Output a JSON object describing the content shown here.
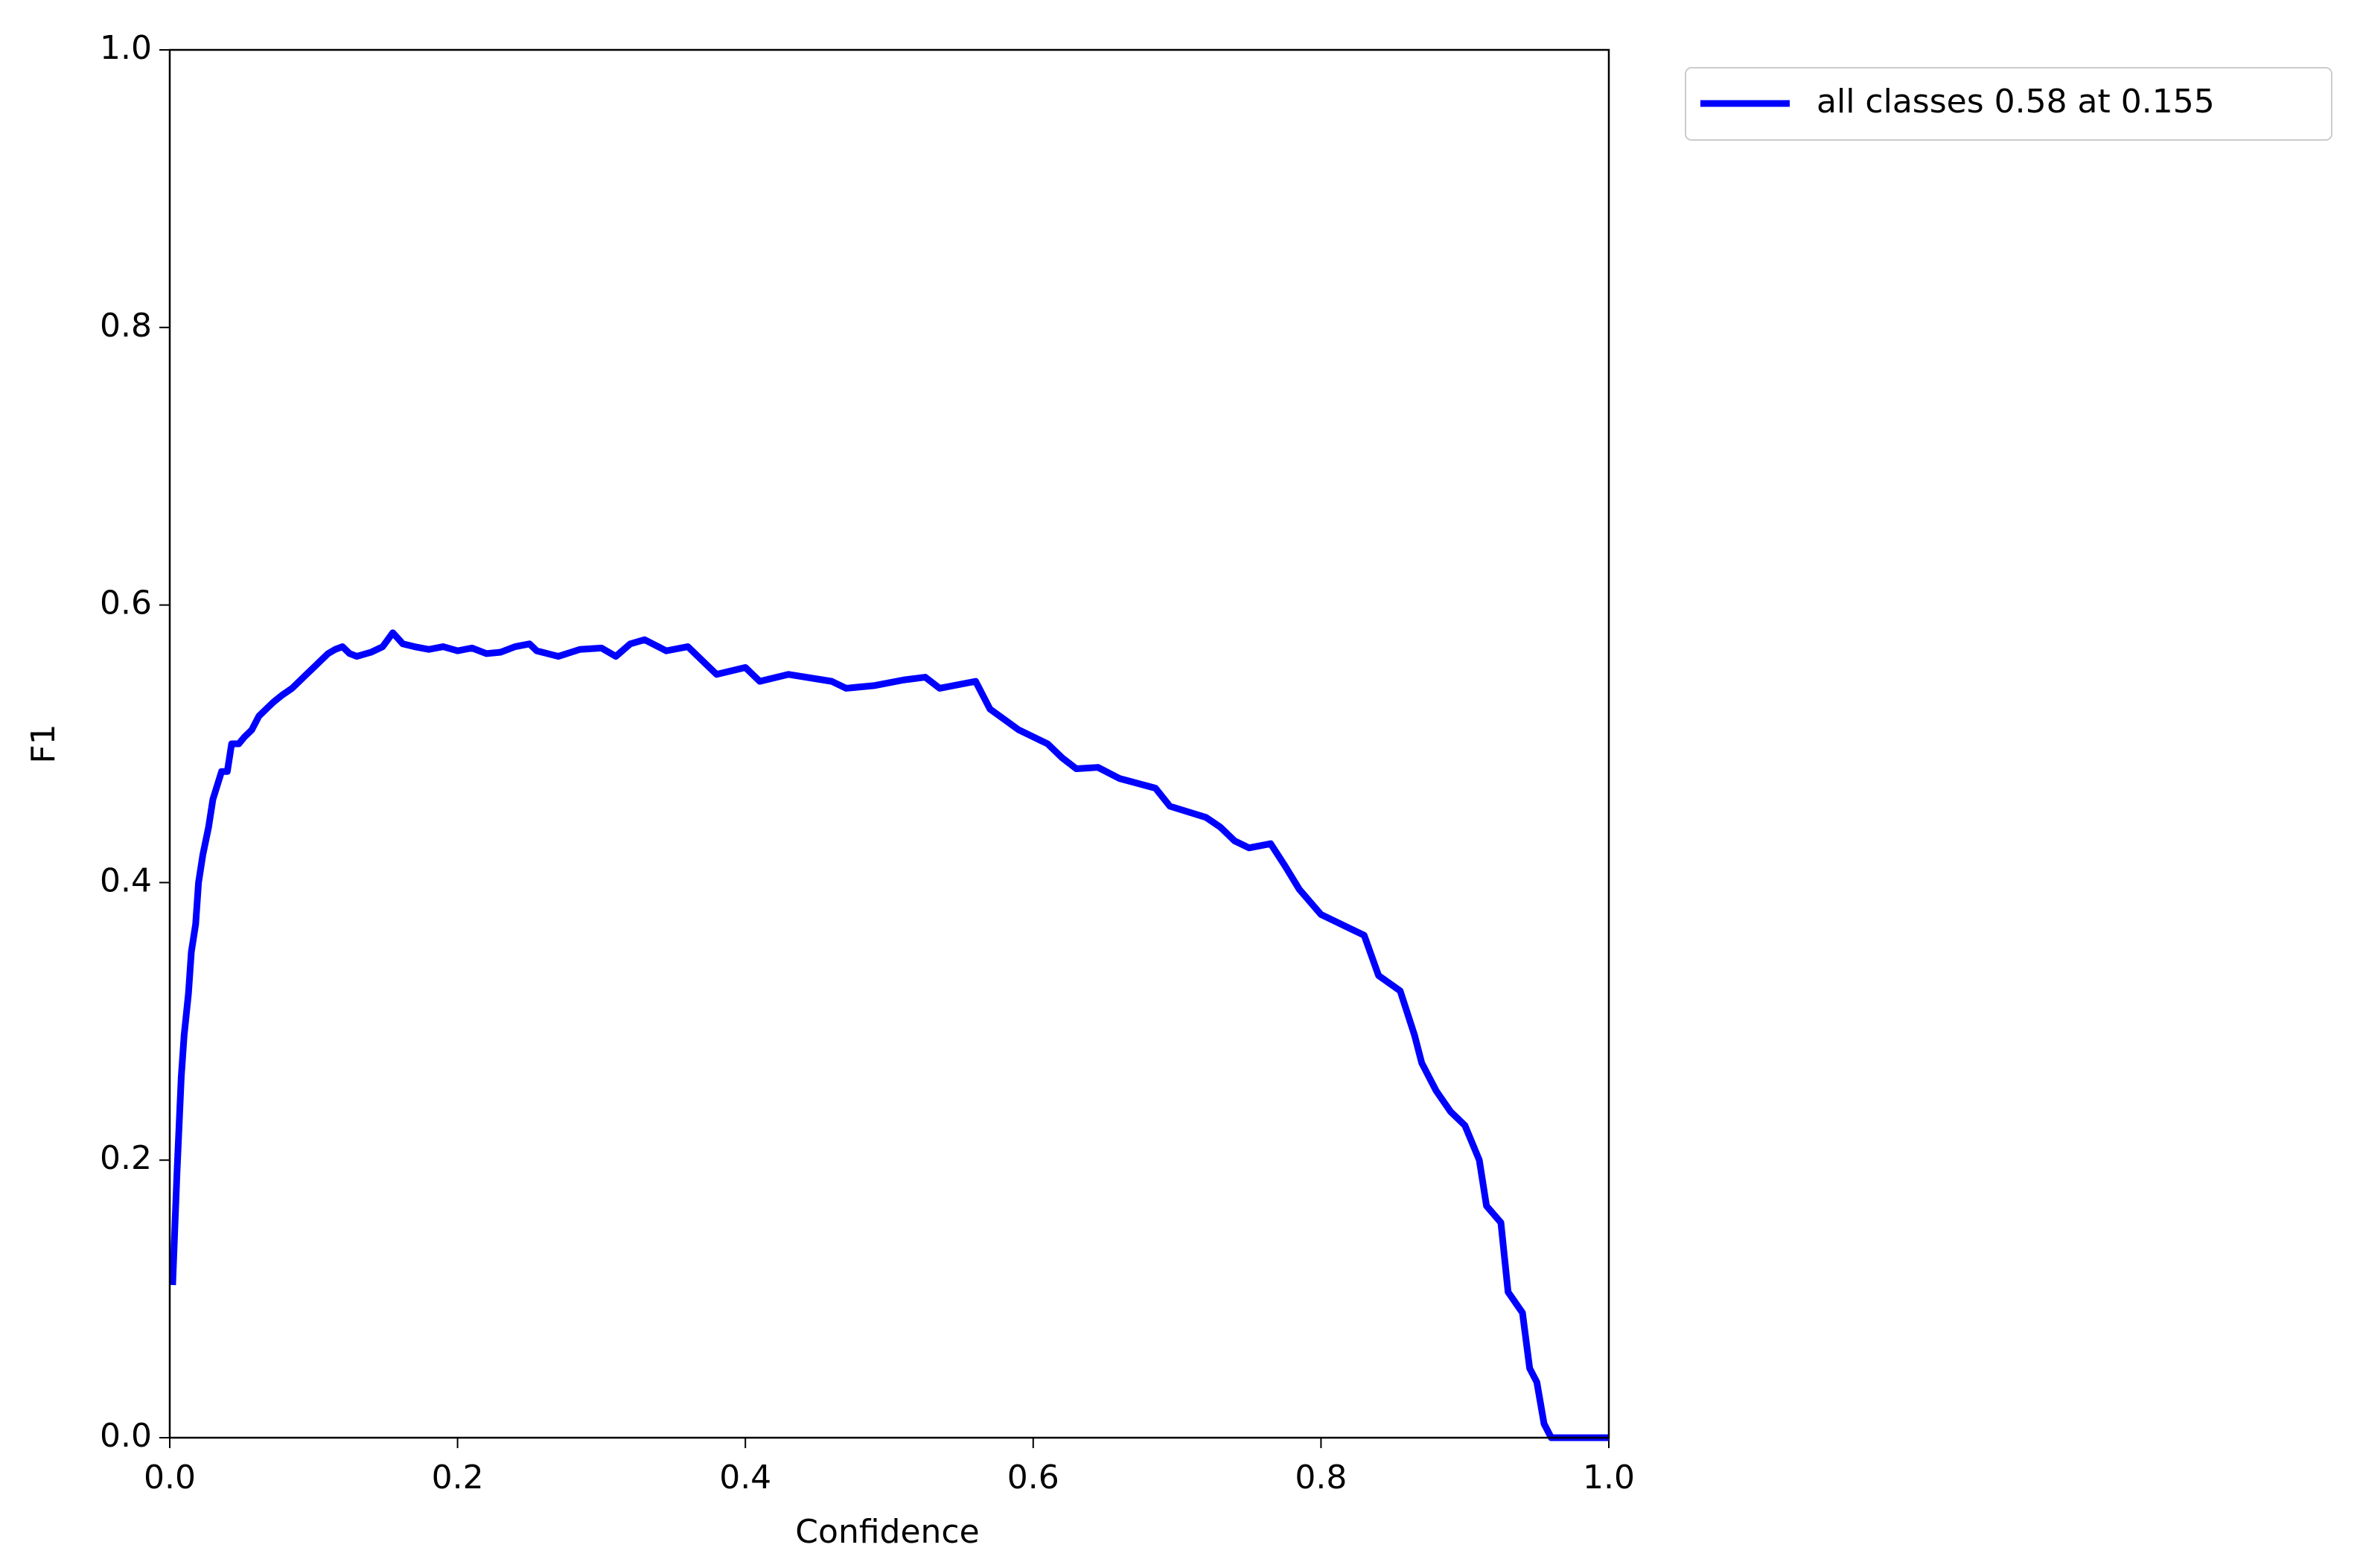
{
  "chart_data": {
    "type": "line",
    "x_label": "Confidence",
    "y_label": "F1",
    "x": [
      0.002,
      0.005,
      0.008,
      0.01,
      0.013,
      0.015,
      0.018,
      0.02,
      0.023,
      0.027,
      0.03,
      0.033,
      0.036,
      0.04,
      0.043,
      0.048,
      0.052,
      0.057,
      0.062,
      0.067,
      0.072,
      0.078,
      0.085,
      0.09,
      0.095,
      0.1,
      0.105,
      0.11,
      0.115,
      0.12,
      0.125,
      0.13,
      0.14,
      0.148,
      0.155,
      0.162,
      0.17,
      0.18,
      0.19,
      0.2,
      0.21,
      0.22,
      0.23,
      0.24,
      0.25,
      0.255,
      0.27,
      0.285,
      0.3,
      0.31,
      0.32,
      0.33,
      0.345,
      0.36,
      0.37,
      0.38,
      0.4,
      0.41,
      0.43,
      0.46,
      0.47,
      0.49,
      0.51,
      0.525,
      0.535,
      0.56,
      0.57,
      0.59,
      0.61,
      0.62,
      0.63,
      0.645,
      0.66,
      0.685,
      0.695,
      0.72,
      0.73,
      0.74,
      0.75,
      0.765,
      0.775,
      0.785,
      0.8,
      0.82,
      0.83,
      0.84,
      0.855,
      0.865,
      0.87,
      0.88,
      0.89,
      0.9,
      0.91,
      0.915,
      0.925,
      0.93,
      0.94,
      0.945,
      0.95,
      0.955,
      0.96,
      1.0
    ],
    "series": [
      {
        "name": "all classes 0.58 at 0.155",
        "color": "#0000ff",
        "values": [
          0.11,
          0.19,
          0.26,
          0.29,
          0.32,
          0.35,
          0.37,
          0.4,
          0.42,
          0.44,
          0.46,
          0.47,
          0.48,
          0.48,
          0.5,
          0.5,
          0.505,
          0.51,
          0.52,
          0.525,
          0.53,
          0.535,
          0.54,
          0.545,
          0.55,
          0.555,
          0.56,
          0.565,
          0.568,
          0.57,
          0.565,
          0.563,
          0.566,
          0.57,
          0.58,
          0.572,
          0.57,
          0.568,
          0.57,
          0.567,
          0.569,
          0.565,
          0.566,
          0.57,
          0.572,
          0.567,
          0.563,
          0.568,
          0.569,
          0.563,
          0.572,
          0.575,
          0.567,
          0.57,
          0.56,
          0.55,
          0.555,
          0.545,
          0.55,
          0.545,
          0.54,
          0.542,
          0.546,
          0.548,
          0.54,
          0.545,
          0.525,
          0.51,
          0.5,
          0.49,
          0.482,
          0.483,
          0.475,
          0.468,
          0.455,
          0.447,
          0.44,
          0.43,
          0.425,
          0.428,
          0.412,
          0.395,
          0.377,
          0.367,
          0.362,
          0.333,
          0.322,
          0.29,
          0.27,
          0.25,
          0.235,
          0.225,
          0.2,
          0.167,
          0.155,
          0.105,
          0.09,
          0.05,
          0.04,
          0.01,
          0,
          0
        ]
      }
    ],
    "xlim": [
      0,
      1
    ],
    "ylim": [
      0,
      1
    ],
    "xticks": [
      {
        "value": 0,
        "label": "0.0"
      },
      0.2,
      0.4,
      0.6,
      0.8,
      {
        "value": 1,
        "label": "1.0"
      }
    ],
    "yticks": [
      {
        "value": 0,
        "label": "0.0"
      },
      0.2,
      0.4,
      0.6,
      0.8,
      {
        "value": 1,
        "label": "1.0"
      }
    ]
  }
}
